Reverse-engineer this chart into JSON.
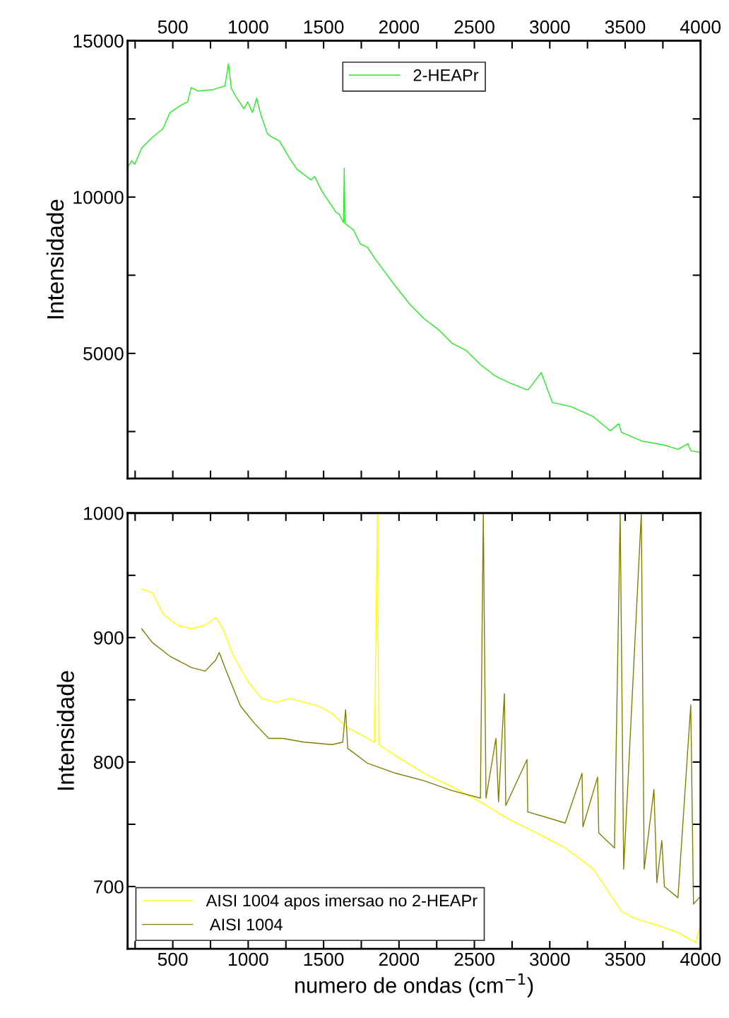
{
  "chart_data": [
    {
      "type": "line",
      "ylabel": "Intensidade",
      "legend": "top center",
      "grid": false,
      "tick_labels": "y",
      "xlim": [
        200,
        4000
      ],
      "xticks": [
        {
          "value": 250,
          "label": null
        },
        {
          "value": 500,
          "label": null
        },
        {
          "value": 750,
          "label": null
        },
        {
          "value": 1000,
          "label": null
        },
        {
          "value": 1250,
          "label": null
        },
        {
          "value": 1500,
          "label": null
        },
        {
          "value": 1750,
          "label": null
        },
        {
          "value": 2000,
          "label": null
        },
        {
          "value": 2250,
          "label": null
        },
        {
          "value": 2500,
          "label": null
        },
        {
          "value": 2750,
          "label": null
        },
        {
          "value": 3000,
          "label": null
        },
        {
          "value": 3250,
          "label": null
        },
        {
          "value": 3500,
          "label": null
        },
        {
          "value": 3750,
          "label": null
        },
        {
          "value": 4000,
          "label": null
        }
      ],
      "x2lim": [
        200,
        4000
      ],
      "x2ticks": [
        {
          "value": 250,
          "label": null
        },
        500,
        {
          "value": 750,
          "label": null
        },
        1000,
        {
          "value": 1250,
          "label": null
        },
        1500,
        {
          "value": 1750,
          "label": null
        },
        2000,
        {
          "value": 2250,
          "label": null
        },
        2500,
        {
          "value": 2750,
          "label": null
        },
        3000,
        {
          "value": 3250,
          "label": null
        },
        3500,
        {
          "value": 3750,
          "label": null
        },
        4000
      ],
      "ylim": [
        1000,
        15000
      ],
      "yticks": [
        {
          "value": 2500,
          "label": null
        },
        5000,
        {
          "value": 7500,
          "label": null
        },
        10000,
        {
          "value": 12500,
          "label": null
        },
        15000
      ],
      "series": [
        {
          "name": "2-HEAPr",
          "color": "#22ee22",
          "x": [
            200,
            228,
            247,
            294,
            364,
            434,
            481,
            551,
            598,
            622,
            668,
            762,
            808,
            846,
            869,
            888,
            925,
            972,
            996,
            1028,
            1056,
            1080,
            1127,
            1159,
            1206,
            1276,
            1323,
            1417,
            1440,
            1487,
            1534,
            1581,
            1604,
            1632,
            1637,
            1641,
            1698,
            1744,
            1791,
            1838,
            1908,
            1978,
            2072,
            2166,
            2259,
            2353,
            2446,
            2540,
            2634,
            2727,
            2844,
            2858,
            2943,
            3017,
            3139,
            3289,
            3401,
            3457,
            3476,
            3607,
            3757,
            3850,
            3916,
            3935,
            3991
          ],
          "values": [
            10950,
            11160,
            11045,
            11570,
            11910,
            12180,
            12700,
            12930,
            13045,
            13500,
            13390,
            13430,
            13500,
            13550,
            14270,
            13480,
            13160,
            12820,
            13045,
            12700,
            13160,
            12700,
            12020,
            11910,
            11800,
            11230,
            10890,
            10545,
            10660,
            10200,
            9860,
            9520,
            9450,
            9180,
            10930,
            9160,
            8950,
            8500,
            8390,
            8045,
            7590,
            7140,
            6570,
            6110,
            5770,
            5320,
            5090,
            4640,
            4290,
            4070,
            3840,
            3840,
            4385,
            3430,
            3300,
            2975,
            2520,
            2750,
            2475,
            2200,
            2070,
            1930,
            2110,
            1885,
            1840
          ]
        }
      ]
    },
    {
      "type": "line",
      "xlabel": "numero de ondas (cm$^{−1}$)",
      "ylabel": "Intensidade",
      "legend": "bottom left",
      "grid": false,
      "xlim": [
        200,
        4000
      ],
      "xticks": [
        {
          "value": 250,
          "label": null
        },
        500,
        {
          "value": 750,
          "label": null
        },
        1000,
        {
          "value": 1250,
          "label": null
        },
        1500,
        {
          "value": 1750,
          "label": null
        },
        2000,
        {
          "value": 2250,
          "label": null
        },
        2500,
        {
          "value": 2750,
          "label": null
        },
        3000,
        {
          "value": 3250,
          "label": null
        },
        3500,
        {
          "value": 3750,
          "label": null
        },
        4000
      ],
      "ylim": [
        650,
        1000
      ],
      "yticks": [
        700,
        {
          "value": 750,
          "label": null
        },
        800,
        {
          "value": 850,
          "label": null
        },
        900,
        {
          "value": 950,
          "label": null
        },
        1000
      ],
      "series": [
        {
          "name": "AISI 1004 apos imersao no 2-HEAPr",
          "color": "#ffff00",
          "x": [
            294,
            364,
            434,
            528,
            622,
            715,
            785,
            832,
            902,
            996,
            1089,
            1183,
            1276,
            1370,
            1464,
            1557,
            1651,
            1744,
            1838,
            1857,
            1866,
            1978,
            2166,
            2353,
            2540,
            2727,
            2914,
            3102,
            3289,
            3382,
            3476,
            3570,
            3710,
            3850,
            3967,
            3991
          ],
          "values": [
            939,
            936,
            919,
            910,
            907,
            910,
            916,
            907,
            885,
            865,
            851,
            848,
            851,
            848,
            845,
            839,
            828,
            822,
            816,
            1000,
            814,
            805,
            791,
            780,
            768,
            754,
            743,
            731,
            714,
            697,
            680,
            674,
            669,
            663,
            655,
            666
          ]
        },
        {
          "name": " AISI 1004",
          "color": "#808000",
          "x": [
            294,
            364,
            481,
            622,
            715,
            785,
            808,
            855,
            949,
            1042,
            1136,
            1230,
            1370,
            1557,
            1627,
            1646,
            1660,
            1791,
            1978,
            2166,
            2353,
            2540,
            2559,
            2577,
            2643,
            2660,
            2699,
            2708,
            2849,
            2854,
            3102,
            3214,
            3220,
            3317,
            3325,
            3429,
            3467,
            3490,
            3607,
            3626,
            3691,
            3710,
            3743,
            3760,
            3850,
            3935,
            3953,
            3991
          ],
          "values": [
            907,
            896,
            885,
            876,
            873,
            882,
            888,
            873,
            845,
            831,
            819,
            819,
            816,
            814,
            816,
            842,
            811,
            799,
            791,
            785,
            777,
            771,
            1000,
            771,
            819,
            768,
            855,
            765,
            802,
            760,
            751,
            791,
            748,
            788,
            743,
            731,
            1000,
            714,
            1000,
            714,
            778,
            703,
            737,
            700,
            691,
            846,
            686,
            691
          ]
        }
      ]
    }
  ]
}
